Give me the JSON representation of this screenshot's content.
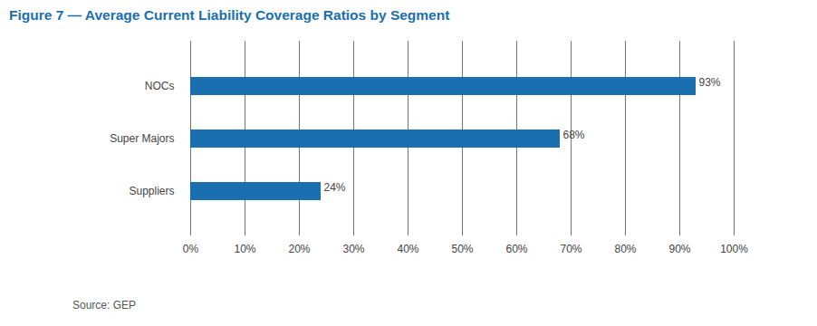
{
  "chart_data": {
    "type": "bar",
    "orientation": "horizontal",
    "title": "Figure 7 — Average Current Liability Coverage Ratios by Segment",
    "caption": "Source: GEP",
    "categories": [
      "NOCs",
      "Super Majors",
      "Suppliers"
    ],
    "values": [
      93,
      68,
      24
    ],
    "value_labels": [
      "93%",
      "68%",
      "24%"
    ],
    "data_labels": true,
    "color": "#1a6fb0",
    "xlim": [
      0,
      100
    ],
    "xticks": [
      {
        "value": 0,
        "label": "0%"
      },
      {
        "value": 10,
        "label": "10%"
      },
      {
        "value": 20,
        "label": "20%"
      },
      {
        "value": 30,
        "label": "30%"
      },
      {
        "value": 40,
        "label": "40%"
      },
      {
        "value": 50,
        "label": "50%"
      },
      {
        "value": 60,
        "label": "60%"
      },
      {
        "value": 70,
        "label": "70%"
      },
      {
        "value": 80,
        "label": "80%"
      },
      {
        "value": 90,
        "label": "90%"
      },
      {
        "value": 100,
        "label": "100%"
      }
    ],
    "grid": true
  }
}
